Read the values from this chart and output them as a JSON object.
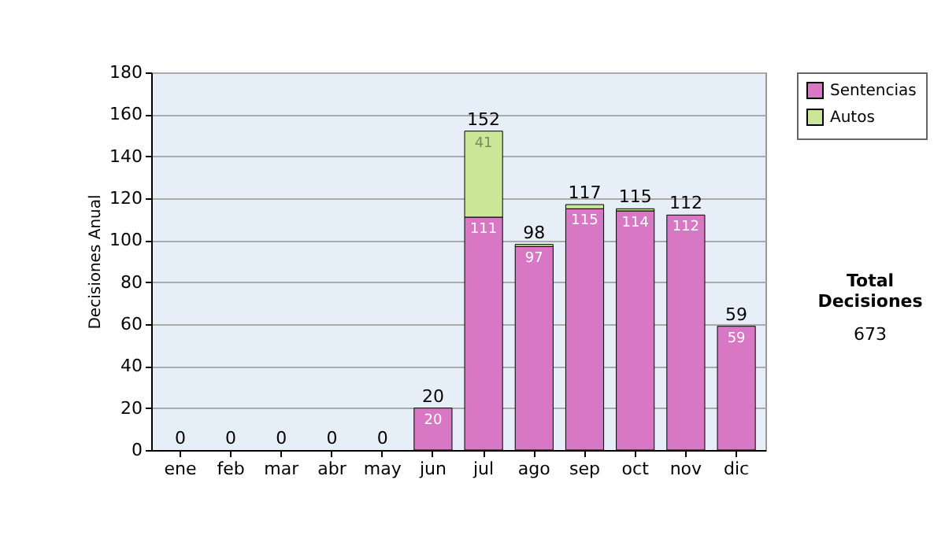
{
  "chart_data": {
    "type": "bar",
    "stacked": true,
    "ylabel": "Decisiones Anual",
    "categories": [
      "ene",
      "feb",
      "mar",
      "abr",
      "may",
      "jun",
      "jul",
      "ago",
      "sep",
      "oct",
      "nov",
      "dic"
    ],
    "series": [
      {
        "name": "Sentencias",
        "color": "#d877c4",
        "values": [
          0,
          0,
          0,
          0,
          0,
          20,
          111,
          97,
          115,
          114,
          112,
          59
        ],
        "value_labels": [
          null,
          null,
          null,
          null,
          null,
          "20",
          "111",
          "97",
          "115",
          "114",
          "112",
          "59"
        ]
      },
      {
        "name": "Autos",
        "color": "#cce698",
        "values": [
          0,
          0,
          0,
          0,
          0,
          0,
          41,
          1,
          2,
          1,
          0,
          0
        ],
        "value_labels": [
          null,
          null,
          null,
          null,
          null,
          null,
          "41",
          null,
          null,
          null,
          null,
          null
        ]
      }
    ],
    "totals": [
      "0",
      "0",
      "0",
      "0",
      "0",
      "20",
      "152",
      "98",
      "117",
      "115",
      "112",
      "59"
    ],
    "ylim": [
      0,
      180
    ],
    "yticks": [
      0,
      20,
      40,
      60,
      80,
      100,
      120,
      140,
      160,
      180
    ],
    "grid": "y",
    "legend": "right",
    "annotations": [
      "Total Decisiones",
      "673"
    ]
  }
}
